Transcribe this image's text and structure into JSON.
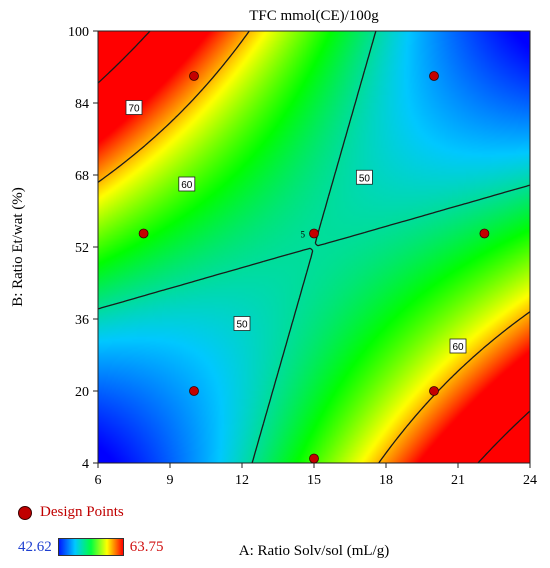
{
  "chart_data": {
    "type": "contour",
    "title": "TFC mmol(CE)/100g",
    "xlabel": "A: Ratio Solv/sol (mL/g)",
    "ylabel": "B: Ratio Et/wat (%)",
    "xlim": [
      6,
      24
    ],
    "ylim": [
      4,
      100
    ],
    "xticks": [
      "6",
      "9",
      "12",
      "15",
      "18",
      "21",
      "24"
    ],
    "yticks": [
      "4",
      "20",
      "36",
      "52",
      "68",
      "84",
      "100"
    ],
    "color_range": {
      "low": "42.62",
      "high": "63.75"
    },
    "colormap": [
      "#0000ff",
      "#00c8ff",
      "#00ff00",
      "#ffff00",
      "#ff0000"
    ],
    "contour_labels": [
      {
        "text": "70",
        "x": 7.5,
        "y": 83
      },
      {
        "text": "60",
        "x": 9.7,
        "y": 66
      },
      {
        "text": "50",
        "x": 17.1,
        "y": 67.5
      },
      {
        "text": "50",
        "x": 12.0,
        "y": 35
      },
      {
        "text": "60",
        "x": 21.0,
        "y": 30
      }
    ],
    "design_points": [
      {
        "x": 10,
        "y": 90
      },
      {
        "x": 20,
        "y": 90
      },
      {
        "x": 7.9,
        "y": 55
      },
      {
        "x": 15,
        "y": 55
      },
      {
        "x": 22.1,
        "y": 55
      },
      {
        "x": 10,
        "y": 20
      },
      {
        "x": 20,
        "y": 20
      },
      {
        "x": 15,
        "y": 5
      }
    ],
    "center_point_label": "5",
    "legend": {
      "label": "Design Points",
      "placement": "bottom-left"
    }
  }
}
